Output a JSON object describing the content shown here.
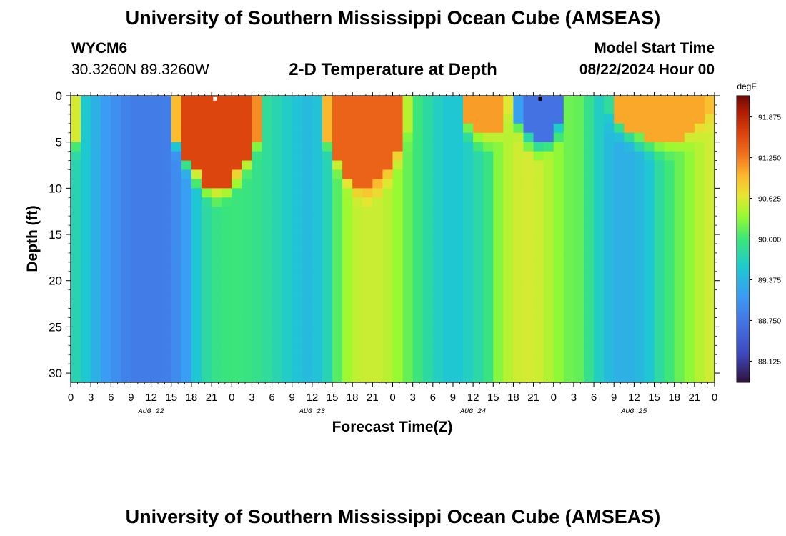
{
  "header": {
    "title": "University of Southern Mississippi Ocean Cube (AMSEAS)",
    "footer_title": "University of Southern Mississippi Ocean Cube (AMSEAS)",
    "station": "WYCM6",
    "coords": "30.3260N  89.3260W",
    "subtitle": "2-D Temperature at Depth",
    "model_label": "Model Start Time",
    "model_time": "08/22/2024 Hour 00"
  },
  "chart_data": {
    "type": "heatmap",
    "title": "2-D Temperature at Depth",
    "xlabel": "Forecast Time(Z)",
    "ylabel": "Depth (ft)",
    "x_unit": "hours since 08/22/2024 00Z",
    "xlim": [
      0,
      96
    ],
    "ylim": [
      31,
      0
    ],
    "x_tick_labels": [
      "0",
      "3",
      "6",
      "9",
      "12",
      "15",
      "18",
      "21",
      "0",
      "3",
      "6",
      "9",
      "12",
      "15",
      "18",
      "21",
      "0",
      "3",
      "6",
      "9",
      "12",
      "15",
      "18",
      "21",
      "0",
      "3",
      "6",
      "9",
      "12",
      "15",
      "18",
      "21",
      "0"
    ],
    "y_ticks": [
      0,
      5,
      10,
      15,
      20,
      25,
      30
    ],
    "y_tick_labels": [
      "0",
      "5",
      "10",
      "15",
      "20",
      "25",
      "30"
    ],
    "date_labels": [
      {
        "label": "AUG 22",
        "hour": 12
      },
      {
        "label": "AUG 23",
        "hour": 36
      },
      {
        "label": "AUG 24",
        "hour": 60
      },
      {
        "label": "AUG 25",
        "hour": 84
      }
    ],
    "colorbar": {
      "unit": "degF",
      "min": 87.8,
      "max": 92.2,
      "ticks": [
        91.875,
        91.25,
        90.625,
        90.0,
        89.375,
        88.75,
        88.125
      ],
      "tick_labels": [
        "91.875",
        "91.250",
        "90.625",
        "90.000",
        "89.375",
        "88.750",
        "88.125"
      ]
    },
    "deep_profile": {
      "hours": [
        0,
        2,
        5,
        9,
        14,
        17,
        19,
        21,
        24,
        27,
        30,
        33,
        36,
        39,
        40,
        42,
        44,
        46,
        48,
        50,
        52,
        54,
        57,
        60,
        62,
        63,
        64,
        66,
        68,
        70,
        72,
        73,
        74,
        76,
        78,
        80,
        82,
        84,
        86,
        88,
        90,
        92,
        94,
        96
      ],
      "temps_degF": [
        89.8,
        89.6,
        89.15,
        88.8,
        88.8,
        89.1,
        89.6,
        89.9,
        90.0,
        89.95,
        89.8,
        89.55,
        89.4,
        89.8,
        90.2,
        90.5,
        90.55,
        90.55,
        90.45,
        90.2,
        89.95,
        89.7,
        89.5,
        89.7,
        89.9,
        90.1,
        90.35,
        90.55,
        90.6,
        90.55,
        90.4,
        90.3,
        90.2,
        90.15,
        89.75,
        89.45,
        89.3,
        89.35,
        89.5,
        89.85,
        90.1,
        90.3,
        90.5,
        90.6
      ]
    },
    "surface_features": [
      {
        "start_hour": 0,
        "end_hour": 1.8,
        "depth_ft": 5,
        "temp_degF": 90.9
      },
      {
        "start_hour": 15,
        "end_hour": 28.5,
        "depth_ft": 10,
        "temp_degF": 91.6
      },
      {
        "start_hour": 37.5,
        "end_hour": 50.5,
        "depth_ft": 10,
        "temp_degF": 91.4
      },
      {
        "start_hour": 58,
        "end_hour": 65.5,
        "depth_ft": 4.5,
        "temp_degF": 91.1
      },
      {
        "start_hour": 66,
        "end_hour": 74,
        "depth_ft": 5,
        "temp_degF": 88.7
      },
      {
        "start_hour": 80,
        "end_hour": 96,
        "depth_ft": 5,
        "temp_degF": 91.05
      }
    ],
    "markers": [
      {
        "hour": 21.5,
        "depth_ft": 0.3,
        "color": "#ffffff"
      },
      {
        "hour": 70.0,
        "depth_ft": 0.3,
        "color": "#000000"
      }
    ]
  }
}
